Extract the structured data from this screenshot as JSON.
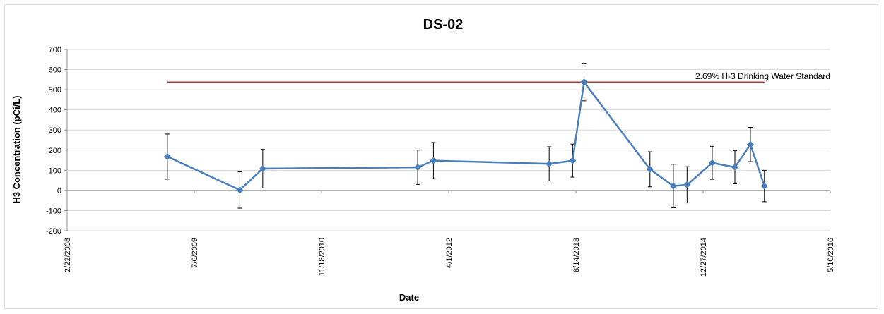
{
  "chart_data": {
    "type": "line",
    "title": "DS-02",
    "xlabel": "Date",
    "ylabel": "H3 Concentration (pCi/L)",
    "x_axis_type": "date",
    "xlim": [
      "2008-02-22",
      "2016-05-10"
    ],
    "x_ticks": [
      {
        "date": "2008-02-22",
        "label": "2/22/2008"
      },
      {
        "date": "2009-07-06",
        "label": "7/6/2009"
      },
      {
        "date": "2010-11-18",
        "label": "11/18/2010"
      },
      {
        "date": "2012-04-01",
        "label": "4/1/2012"
      },
      {
        "date": "2013-08-14",
        "label": "8/14/2013"
      },
      {
        "date": "2014-12-27",
        "label": "12/27/2014"
      },
      {
        "date": "2016-05-10",
        "label": "5/10/2016"
      }
    ],
    "ylim": [
      -200,
      700
    ],
    "y_ticks": [
      -200,
      -100,
      0,
      100,
      200,
      300,
      400,
      500,
      600,
      700
    ],
    "grid": "horizontal",
    "series": [
      {
        "color": "#4a7ebb",
        "marker": "diamond",
        "points": [
          {
            "x": "2009-03-22",
            "y": 168,
            "err": 112
          },
          {
            "x": "2010-01-01",
            "y": 2,
            "err": 90
          },
          {
            "x": "2010-04-01",
            "y": 108,
            "err": 96
          },
          {
            "x": "2011-12-01",
            "y": 115,
            "err": 85
          },
          {
            "x": "2012-02-01",
            "y": 148,
            "err": 90
          },
          {
            "x": "2013-05-01",
            "y": 132,
            "err": 85
          },
          {
            "x": "2013-08-01",
            "y": 148,
            "err": 82
          },
          {
            "x": "2013-09-15",
            "y": 538,
            "err": 93
          },
          {
            "x": "2014-06-01",
            "y": 105,
            "err": 87
          },
          {
            "x": "2014-09-01",
            "y": 22,
            "err": 108
          },
          {
            "x": "2014-10-25",
            "y": 28,
            "err": 90
          },
          {
            "x": "2015-02-01",
            "y": 137,
            "err": 82
          },
          {
            "x": "2015-05-01",
            "y": 115,
            "err": 82
          },
          {
            "x": "2015-07-01",
            "y": 228,
            "err": 85
          },
          {
            "x": "2015-08-25",
            "y": 22,
            "err": 78
          }
        ]
      }
    ],
    "reference_line": {
      "label": "2.69% H-3 Drinking  Water Standard",
      "y": 538,
      "x_start": "2009-03-22",
      "x_end": "2015-08-25",
      "color": "#c0392b"
    },
    "legend": "none"
  }
}
